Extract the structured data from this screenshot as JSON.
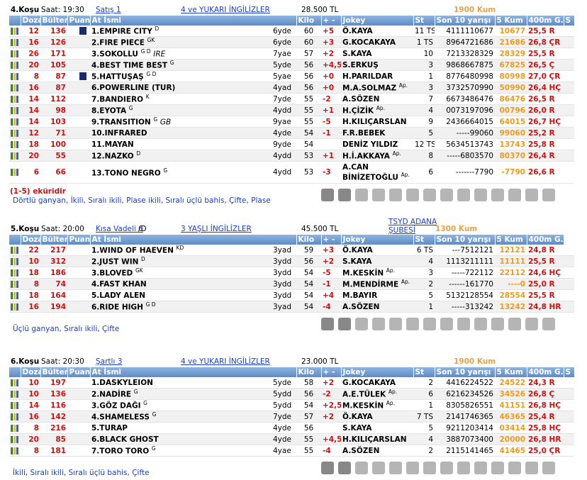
{
  "races": [
    {
      "header": {
        "race": "4.Koşu",
        "time": "Saat: 19:30",
        "condition": "Satış  1",
        "group": "4 ve YUKARI İNGİLİZLER",
        "prize": "28.500 TL",
        "distance": "1900 Kum"
      },
      "columns": [
        "Dozaj",
        "Bülten",
        "Puan",
        "At İsmi",
        "Kilo",
        "+ -",
        "Jokey",
        "St",
        "Son 10 yarışı",
        "5 Kum",
        "400m G.",
        "S"
      ],
      "rows": [
        {
          "dozaj": 12,
          "bulten": 136,
          "puan": "1.EMPIRE CITY",
          "sup": "D",
          "age": "6yde",
          "kilo": 60,
          "pm": "+5",
          "jokey": "Ö.KAYA",
          "st": "11 TS",
          "son10": "4111110677",
          "kum5": "10677",
          "g400": "25,5 R",
          "jersey": true
        },
        {
          "dozaj": 16,
          "bulten": 126,
          "puan": "2.FIRE PIECE",
          "sup": "GK",
          "age": "6yde",
          "kilo": 60,
          "pm": "+3",
          "jokey": "G.KOCAKAYA",
          "st": "1 TS",
          "son10": "8964721686",
          "kum5": "21686",
          "g400": "26,8 ÇR"
        },
        {
          "dozaj": 26,
          "bulten": 171,
          "puan": "3.SOKOLLU",
          "sup": "G D",
          "origin": "IRE",
          "age": "7yae",
          "kilo": 57,
          "pm": "+2",
          "jokey": "S.KAYA",
          "st": "10",
          "son10": "7213328329",
          "kum5": "28329",
          "g400": "25,5 R"
        },
        {
          "dozaj": 20,
          "bulten": 105,
          "puan": "4.BEST TIME BEST",
          "sup": "G",
          "age": "5yde",
          "kilo": 56,
          "pm": "+4,5",
          "jokey": "S.ERKUŞ",
          "st": "3",
          "son10": "9868667875",
          "kum5": "67825",
          "g400": "26,5 Ç"
        },
        {
          "dozaj": 8,
          "bulten": 87,
          "puan": "5.HATTUŞAŞ",
          "sup": "G D",
          "age": "5yae",
          "kilo": 56,
          "pm": "+0",
          "jokey": "H.PARILDAR",
          "st": "1",
          "son10": "8776480998",
          "kum5": "80998",
          "g400": "27,0 ÇR",
          "jersey": true
        },
        {
          "dozaj": 16,
          "bulten": 87,
          "puan": "6.POWERLINE (TUR)",
          "age": "4yad",
          "kilo": 56,
          "pm": "+0",
          "jokey": "M.A.SOLMAZ",
          "ap": "Ap.",
          "st": "3",
          "son10": "3732570990",
          "kum5": "50990",
          "g400": "26,4 HÇ"
        },
        {
          "dozaj": 14,
          "bulten": 112,
          "puan": "7.BANDIERO",
          "sup": "K",
          "age": "7yde",
          "kilo": 55,
          "pm": "-2",
          "jokey": "A.SÖZEN",
          "st": "7",
          "son10": "6673486476",
          "kum5": "86476",
          "g400": "26,5 R"
        },
        {
          "dozaj": 14,
          "bulten": 98,
          "puan": "8.EYOTA",
          "sup": "G",
          "age": "4ydd",
          "kilo": 55,
          "pm": "+1",
          "jokey": "H.ÇİZİK",
          "ap": "Ap.",
          "st": "4",
          "son10": "0073197096",
          "kum5": "00796",
          "g400": "26,0 R"
        },
        {
          "dozaj": 14,
          "bulten": 103,
          "puan": "9.TRANSITION",
          "sup": "G",
          "origin": "GB",
          "age": "9yae",
          "kilo": 55,
          "pm": "-5",
          "jokey": "H.KILIÇARSLAN",
          "st": "9",
          "son10": "2436664015",
          "kum5": "64015",
          "g400": "26,7 HÇ"
        },
        {
          "dozaj": 12,
          "bulten": 71,
          "puan": "10.INFRARED",
          "age": "4yde",
          "kilo": 54,
          "pm": "-1",
          "jokey": "F.R.BEBEK",
          "st": "5",
          "son10": "-----99060",
          "kum5": "99060",
          "g400": "25,2 R"
        },
        {
          "dozaj": 18,
          "bulten": 100,
          "puan": "11.MAYAN",
          "age": "9yde",
          "kilo": 54,
          "jokey": "DENİZ YILDIZ",
          "st": "12 TS",
          "son10": "5634513743",
          "kum5": "13743",
          "g400": "25,8 R"
        },
        {
          "dozaj": 20,
          "bulten": 55,
          "puan": "12.NAZKO",
          "sup": "D",
          "age": "4ydd",
          "kilo": 53,
          "pm": "+1",
          "jokey": "H.İ.AKKAYA",
          "ap": "Ap.",
          "st": "8",
          "son10": "-----6803570",
          "kum5": "80370",
          "g400": "26,4 R"
        },
        {
          "dozaj": 6,
          "bulten": 66,
          "puan": "13.TONO NEGRO",
          "sup": "G",
          "age": "4ydd",
          "kilo": 53,
          "pm": "-3",
          "jokey": "A.CAN BİNİZETOĞLU",
          "ap": "Ap.",
          "st": "6",
          "son10": "-------7790",
          "kum5": "-7790",
          "g400": "26,6 R"
        }
      ],
      "ekuri": "(1-5) eküridir",
      "bets": "Dörtlü ganyan, İkili, Sıralı ikili, Plase ikili, Sıralı üçlü bahis, Çifte, Plase"
    },
    {
      "header": {
        "race": "5.Koşu",
        "time": "Saat: 20:00",
        "condition": "Kısa Vadeli  6",
        "condition_suffix": "/D",
        "group": "3 YAŞLI İNGİLİZLER",
        "prize": "45.500 TL",
        "sponsor": "TSYD ADANA ŞUBESİ",
        "distance": "1300 Kum"
      },
      "columns": [
        "Dozaj",
        "Bülten",
        "Puan",
        "At İsmi",
        "Kilo",
        "+ -",
        "Jokey",
        "St",
        "Son 10 yarışı",
        "5 Kum",
        "400m G."
      ],
      "rows": [
        {
          "dozaj": 22,
          "bulten": 217,
          "puan": "1.WIND OF HAEVEN",
          "sup": "KD",
          "age": "3yad",
          "kilo": 59,
          "pm": "+3",
          "jokey": "Ö.KAYA",
          "st": "6 TS",
          "son10": "---7512121",
          "kum5": "12121",
          "g400": "24,8 R"
        },
        {
          "dozaj": 10,
          "bulten": 312,
          "puan": "2.JUST WIN",
          "sup": "D",
          "age": "3ydd",
          "kilo": 56,
          "pm": "+2",
          "jokey": "S.KAYA",
          "st": "4",
          "son10": "1113211111",
          "kum5": "11111",
          "g400": "25,5 R"
        },
        {
          "dozaj": 18,
          "bulten": 186,
          "puan": "3.BLOVED",
          "sup": "GK",
          "age": "3ydd",
          "kilo": 54,
          "pm": "-5",
          "jokey": "M.KESKİN",
          "ap": "Ap.",
          "st": "3",
          "son10": "-----722112",
          "kum5": "22112",
          "g400": "24,6 HÇ"
        },
        {
          "dozaj": 8,
          "bulten": 74,
          "puan": "4.FAST KHAN",
          "age": "3ydd",
          "kilo": 54,
          "pm": "-1",
          "jokey": "M.MENDİRME",
          "ap": "Ap.",
          "st": "2",
          "son10": "------161770",
          "kum5": "----0",
          "g400": "25,0 R"
        },
        {
          "dozaj": 18,
          "bulten": 164,
          "puan": "5.LADY ALEN",
          "age": "3ydd",
          "kilo": 54,
          "pm": "+4",
          "jokey": "M.BAYIR",
          "st": "5",
          "son10": "5132128554",
          "kum5": "28554",
          "g400": "25,5 R"
        },
        {
          "dozaj": 16,
          "bulten": 194,
          "puan": "6.RIDE HIGH",
          "sup": "G D",
          "age": "3yad",
          "kilo": 54,
          "pm": "-4",
          "jokey": "A.SÖZEN",
          "st": "1",
          "son10": "-----313242",
          "kum5": "13242",
          "g400": "24,8 HR"
        }
      ],
      "bets": "Üçlü ganyan, Sıralı ikili, Çifte"
    },
    {
      "header": {
        "race": "6.Koşu",
        "time": "Saat: 20:30",
        "condition": "Şartlı  3",
        "group": "4 ve YUKARI İNGİLİZLER",
        "prize": "23.000 TL",
        "distance": "1900 Kum"
      },
      "columns": [
        "Dozaj",
        "Bülten",
        "Puan",
        "At İsmi",
        "Kilo",
        "+ -",
        "Jokey",
        "St",
        "Son 10 yarışı",
        "5 Kum",
        "400m G.",
        "S"
      ],
      "rows": [
        {
          "dozaj": 10,
          "bulten": 197,
          "puan": "1.DASKYLEION",
          "age": "5yde",
          "kilo": 58,
          "pm": "+2",
          "jokey": "G.KOCAKAYA",
          "st": "2",
          "son10": "4416224522",
          "kum5": "24522",
          "g400": "24,3 R"
        },
        {
          "dozaj": 10,
          "bulten": 136,
          "puan": "2.NADİRE",
          "sup": "G",
          "age": "5ydd",
          "kilo": 56,
          "pm": "-2",
          "jokey": "A.E.TÜLEK",
          "ap": "Ap.",
          "st": "6",
          "son10": "6216234526",
          "kum5": "34526",
          "g400": "26,8 Ç"
        },
        {
          "dozaj": 14,
          "bulten": 116,
          "puan": "3.GÖZ DAĞI",
          "sup": "G",
          "age": "5ydd",
          "kilo": 54,
          "pm": "+2,5",
          "jokey": "M.KESKİN",
          "ap": "Ap.",
          "st": "1",
          "son10": "8305826551",
          "kum5": "41151",
          "g400": "26,8 HÇ"
        },
        {
          "dozaj": 16,
          "bulten": 142,
          "puan": "4.SHAMELESS",
          "sup": "G",
          "age": "7yde",
          "kilo": 57,
          "pm": "+2",
          "jokey": "Ö.KAYA",
          "st": "7 TS",
          "son10": "2141746365",
          "kum5": "46365",
          "g400": "25,4 R"
        },
        {
          "dozaj": 8,
          "bulten": 216,
          "puan": "5.TURAP",
          "age": "4yde",
          "kilo": 56,
          "jokey": "S.KAYA",
          "st": "5",
          "son10": "9211203414",
          "kum5": "03414",
          "g400": "25,8 HÇ"
        },
        {
          "dozaj": 20,
          "bulten": 85,
          "puan": "6.BLACK GHOST",
          "age": "4yde",
          "kilo": 55,
          "pm": "+4,5",
          "jokey": "H.KILIÇARSLAN",
          "st": "4",
          "son10": "3887073400",
          "kum5": "20000",
          "g400": "26,8 HR"
        },
        {
          "dozaj": 8,
          "bulten": 181,
          "puan": "7.TORO TORO",
          "sup": "G",
          "age": "4yae",
          "kilo": 55,
          "pm": "-4",
          "jokey": "A.SÖZEN",
          "st": "2",
          "son10": "2115141465",
          "kum5": "41465",
          "g400": "25,0 ÇR"
        }
      ],
      "bets": "İkili, Sıralı ikili, Sıralı üçlü bahis, Çifte"
    }
  ]
}
